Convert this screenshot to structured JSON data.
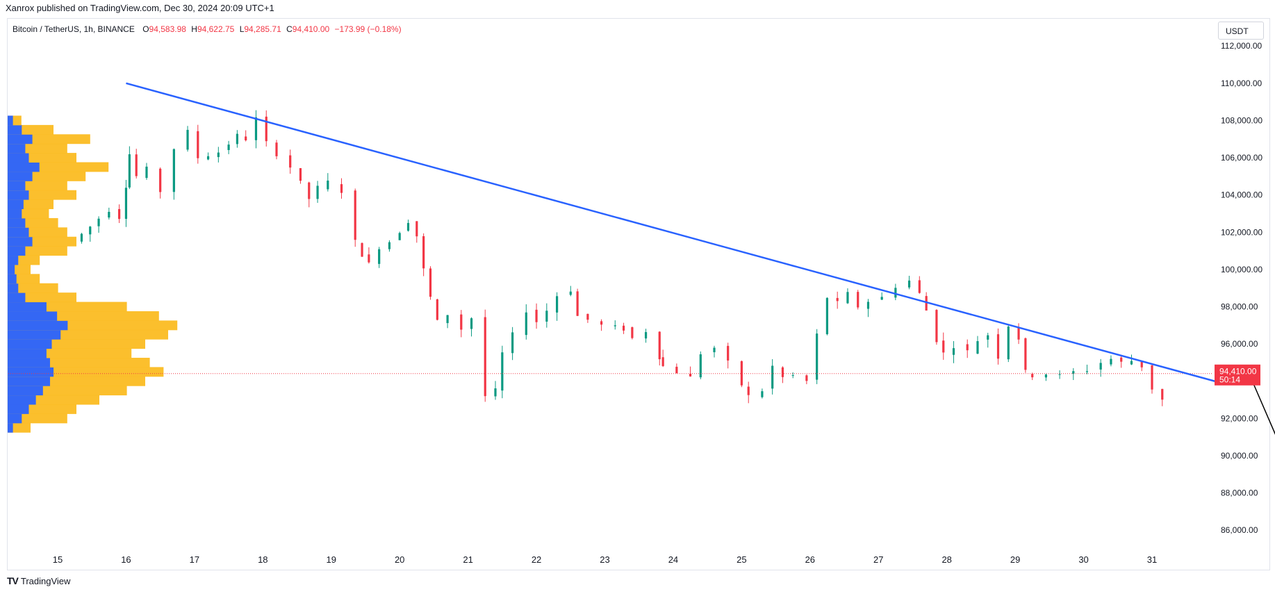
{
  "header": {
    "published_by": "Xanrox published on TradingView.com, Dec 30, 2024 20:09 UTC+1"
  },
  "legend": {
    "symbol": "Bitcoin / TetherUS, 1h, BINANCE",
    "open_label": "O",
    "open": "94,583.98",
    "high_label": "H",
    "high": "94,622.75",
    "low_label": "L",
    "low": "94,285.71",
    "close_label": "C",
    "close": "94,410.00",
    "change": "−173.99 (−0.18%)"
  },
  "currency": "USDT",
  "last_price": {
    "price": "94,410.00",
    "countdown": "50:14"
  },
  "footer": {
    "brand": "TradingView",
    "logo_icon": "tradingview-logo-icon"
  },
  "colors": {
    "up": "#089981",
    "down": "#f23645",
    "trendline": "#2962ff",
    "volume_profile_up": "#2962ff",
    "volume_profile_down": "#fbbc22",
    "arrow": "#000000"
  },
  "chart_data": {
    "type": "candlestick",
    "interval": "1h",
    "ylim": [
      85000,
      113500
    ],
    "y_ticks": [
      86000,
      88000,
      90000,
      92000,
      94000,
      96000,
      98000,
      100000,
      102000,
      104000,
      106000,
      108000,
      110000,
      112000
    ],
    "y_tick_labels": [
      "86,000.00",
      "88,000.00",
      "90,000.00",
      "92,000.00",
      "94,000.00",
      "96,000.00",
      "98,000.00",
      "100,000.00",
      "102,000.00",
      "104,000.00",
      "106,000.00",
      "108,000.00",
      "110,000.00",
      "112,000.00"
    ],
    "x_ticks": [
      15,
      16,
      17,
      18,
      19,
      20,
      21,
      22,
      23,
      24,
      25,
      26,
      27,
      28,
      29,
      30,
      31
    ],
    "x_tick_labels": [
      "15",
      "16",
      "17",
      "18",
      "19",
      "20",
      "21",
      "22",
      "23",
      "24",
      "25",
      "26",
      "27",
      "28",
      "29",
      "30",
      "31"
    ],
    "xlim": [
      14.2,
      31.92
    ],
    "price_path": [
      [
        15.35,
        101.5
      ],
      [
        15.6,
        102.3
      ],
      [
        15.9,
        103.2
      ],
      [
        16.0,
        102.8
      ],
      [
        16.05,
        104.5
      ],
      [
        16.15,
        106.2
      ],
      [
        16.3,
        105.0
      ],
      [
        16.5,
        105.4
      ],
      [
        16.7,
        104.2
      ],
      [
        16.9,
        106.5
      ],
      [
        17.05,
        107.4
      ],
      [
        17.2,
        106.0
      ],
      [
        17.5,
        106.3
      ],
      [
        17.75,
        107.2
      ],
      [
        17.9,
        107.0
      ],
      [
        18.05,
        108.1
      ],
      [
        18.2,
        106.8
      ],
      [
        18.4,
        106.2
      ],
      [
        18.55,
        105.5
      ],
      [
        18.8,
        103.8
      ],
      [
        18.95,
        104.4
      ],
      [
        19.15,
        104.7
      ],
      [
        19.35,
        104.2
      ],
      [
        19.45,
        101.5
      ],
      [
        19.55,
        100.8
      ],
      [
        19.7,
        100.3
      ],
      [
        19.85,
        101.2
      ],
      [
        20.0,
        101.5
      ],
      [
        20.25,
        102.6
      ],
      [
        20.35,
        101.8
      ],
      [
        20.45,
        100.0
      ],
      [
        20.55,
        98.5
      ],
      [
        20.7,
        97.2
      ],
      [
        20.9,
        97.6
      ],
      [
        21.05,
        96.8
      ],
      [
        21.25,
        97.4
      ],
      [
        21.4,
        93.2
      ],
      [
        21.5,
        93.5
      ],
      [
        21.65,
        95.5
      ],
      [
        21.85,
        96.5
      ],
      [
        22.0,
        97.8
      ],
      [
        22.15,
        97.2
      ],
      [
        22.3,
        97.8
      ],
      [
        22.5,
        98.6
      ],
      [
        22.6,
        98.9
      ],
      [
        22.75,
        97.5
      ],
      [
        22.95,
        97.3
      ],
      [
        23.15,
        97.0
      ],
      [
        23.4,
        96.8
      ],
      [
        23.6,
        96.3
      ],
      [
        23.8,
        96.7
      ],
      [
        23.85,
        95.3
      ],
      [
        24.05,
        94.8
      ],
      [
        24.25,
        94.5
      ],
      [
        24.4,
        94.2
      ],
      [
        24.6,
        95.5
      ],
      [
        24.8,
        95.8
      ],
      [
        25.0,
        95.0
      ],
      [
        25.1,
        93.8
      ],
      [
        25.3,
        93.2
      ],
      [
        25.45,
        93.5
      ],
      [
        25.6,
        94.8
      ],
      [
        25.75,
        94.2
      ],
      [
        25.95,
        94.3
      ],
      [
        26.1,
        94.0
      ],
      [
        26.25,
        96.5
      ],
      [
        26.4,
        98.5
      ],
      [
        26.55,
        98.2
      ],
      [
        26.7,
        98.7
      ],
      [
        26.85,
        98.0
      ],
      [
        27.05,
        98.3
      ],
      [
        27.25,
        98.5
      ],
      [
        27.45,
        99.1
      ],
      [
        27.6,
        99.4
      ],
      [
        27.7,
        98.7
      ],
      [
        27.85,
        97.8
      ],
      [
        27.95,
        96.2
      ],
      [
        28.1,
        95.5
      ],
      [
        28.3,
        95.9
      ],
      [
        28.45,
        95.6
      ],
      [
        28.6,
        96.2
      ],
      [
        28.75,
        96.5
      ],
      [
        28.9,
        95.3
      ],
      [
        29.05,
        97.0
      ],
      [
        29.15,
        96.3
      ],
      [
        29.25,
        94.5
      ],
      [
        29.45,
        94.3
      ],
      [
        29.65,
        94.4
      ],
      [
        29.85,
        94.3
      ],
      [
        30.05,
        94.5
      ],
      [
        30.25,
        94.6
      ],
      [
        30.4,
        95.0
      ],
      [
        30.55,
        95.2
      ],
      [
        30.7,
        95.0
      ],
      [
        30.85,
        95.1
      ],
      [
        31.0,
        94.8
      ],
      [
        31.15,
        93.6
      ],
      [
        31.3,
        93.0
      ],
      [
        31.45,
        93.4
      ],
      [
        31.6,
        93.1
      ],
      [
        31.75,
        92.4
      ],
      [
        31.85,
        93.0
      ],
      [
        31.95,
        92.3
      ],
      [
        32.05,
        93.7
      ],
      [
        32.18,
        93.8
      ],
      [
        32.3,
        92.2
      ],
      [
        32.42,
        94.4
      ]
    ],
    "trendline": {
      "from": [
        16.0,
        110000
      ],
      "to": [
        31.92,
        94000
      ]
    },
    "projection_arrow": {
      "from": [
        32.42,
        94400
      ],
      "to": [
        32.95,
        89900
      ]
    },
    "last_price_line": 94410,
    "volume_profile": {
      "levels": [
        91.5,
        92.0,
        92.5,
        93.0,
        93.5,
        94.0,
        94.5,
        95.0,
        95.5,
        96.0,
        96.5,
        97.0,
        97.5,
        98.0,
        98.5,
        99.0,
        99.5,
        100.0,
        100.5,
        101.0,
        101.5,
        102.0,
        102.5,
        103.0,
        103.5,
        104.0,
        104.5,
        105.0,
        105.5,
        106.0,
        106.5,
        107.0,
        107.5,
        108.0
      ],
      "up_volume": [
        3,
        8,
        12,
        16,
        20,
        24,
        26,
        24,
        22,
        25,
        30,
        34,
        28,
        22,
        10,
        6,
        5,
        4,
        6,
        10,
        14,
        12,
        10,
        8,
        9,
        12,
        10,
        14,
        18,
        12,
        10,
        14,
        8,
        3
      ],
      "down_volume": [
        10,
        26,
        30,
        40,
        52,
        60,
        68,
        62,
        54,
        60,
        70,
        74,
        66,
        52,
        30,
        22,
        14,
        10,
        14,
        26,
        30,
        26,
        22,
        18,
        20,
        30,
        26,
        34,
        44,
        30,
        26,
        36,
        20,
        6
      ]
    }
  }
}
